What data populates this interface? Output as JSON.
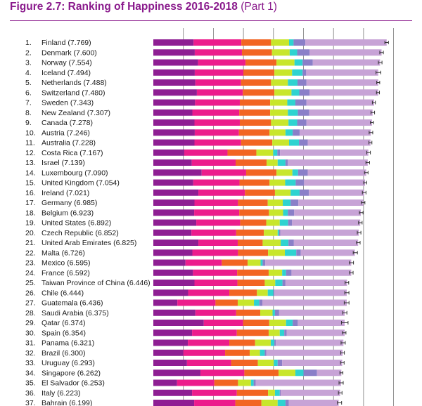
{
  "title": {
    "main": "Figure 2.7: Ranking of Happiness 2016-2018",
    "part": "(Part 1)"
  },
  "colors": {
    "title": "#8a1a8c",
    "segments": [
      "#8e1e93",
      "#ec1c8c",
      "#f26522",
      "#c8e62c",
      "#2ed3d0",
      "#8a7fc8",
      "#c7a3d6"
    ],
    "error_bar": "#333333",
    "gridline": "#7a7a7a"
  },
  "chart_data": {
    "type": "bar",
    "orientation": "horizontal",
    "stacked": true,
    "x_axis": "happiness score, from 0 (bar start); thin vertical gridlines at each 1 point",
    "grid": true,
    "segment_order_left_to_right": [
      "dark purple (segment 1)",
      "magenta (segment 2)",
      "orange (segment 3)",
      "lime green (segment 4)",
      "cyan (segment 5)",
      "lavender (segment 6)",
      "light purple (segment 7)"
    ],
    "rows": [
      {
        "rank": "1.",
        "label": "Finland (7.769)",
        "value": 7.769,
        "segments": [
          1.34,
          1.59,
          0.99,
          0.6,
          0.15,
          0.39,
          2.71
        ],
        "ci": 0.06
      },
      {
        "rank": "2.",
        "label": "Denmark (7.600)",
        "value": 7.6,
        "segments": [
          1.38,
          1.57,
          1.0,
          0.59,
          0.25,
          0.41,
          2.4
        ],
        "ci": 0.06
      },
      {
        "rank": "3.",
        "label": "Norway (7.554)",
        "value": 7.554,
        "segments": [
          1.49,
          1.58,
          1.03,
          0.6,
          0.27,
          0.34,
          2.24
        ],
        "ci": 0.06
      },
      {
        "rank": "4.",
        "label": "Iceland (7.494)",
        "value": 7.494,
        "segments": [
          1.38,
          1.62,
          1.03,
          0.59,
          0.35,
          0.12,
          2.4
        ],
        "ci": 0.08
      },
      {
        "rank": "5.",
        "label": "Netherlands (7.488)",
        "value": 7.488,
        "segments": [
          1.4,
          1.52,
          1.0,
          0.56,
          0.32,
          0.3,
          2.39
        ],
        "ci": 0.05
      },
      {
        "rank": "6.",
        "label": "Switzerland (7.480)",
        "value": 7.48,
        "segments": [
          1.45,
          1.53,
          1.05,
          0.57,
          0.26,
          0.34,
          2.29
        ],
        "ci": 0.05
      },
      {
        "rank": "7.",
        "label": "Sweden (7.343)",
        "value": 7.343,
        "segments": [
          1.39,
          1.49,
          1.01,
          0.57,
          0.27,
          0.37,
          2.25
        ],
        "ci": 0.05
      },
      {
        "rank": "8.",
        "label": "New Zealand (7.307)",
        "value": 7.307,
        "segments": [
          1.3,
          1.56,
          1.03,
          0.59,
          0.33,
          0.38,
          2.11
        ],
        "ci": 0.06
      },
      {
        "rank": "9.",
        "label": "Canada (7.278)",
        "value": 7.278,
        "segments": [
          1.37,
          1.51,
          1.04,
          0.58,
          0.29,
          0.31,
          2.18
        ],
        "ci": 0.05
      },
      {
        "rank": "10.",
        "label": "Austria (7.246)",
        "value": 7.246,
        "segments": [
          1.38,
          1.47,
          1.02,
          0.53,
          0.24,
          0.23,
          2.37
        ],
        "ci": 0.06
      },
      {
        "rank": "11.",
        "label": "Australia (7.228)",
        "value": 7.228,
        "segments": [
          1.37,
          1.55,
          1.04,
          0.56,
          0.33,
          0.29,
          2.09
        ],
        "ci": 0.05
      },
      {
        "rank": "12.",
        "label": "Costa Rica (7.167)",
        "value": 7.167,
        "segments": [
          1.03,
          1.44,
          0.96,
          0.56,
          0.14,
          0.09,
          2.94
        ],
        "ci": 0.06
      },
      {
        "rank": "13.",
        "label": "Israel (7.139)",
        "value": 7.139,
        "segments": [
          1.28,
          1.46,
          1.03,
          0.37,
          0.26,
          0.08,
          2.66
        ],
        "ci": 0.06
      },
      {
        "rank": "14.",
        "label": "Luxembourg (7.090)",
        "value": 7.09,
        "segments": [
          1.61,
          1.48,
          1.01,
          0.53,
          0.19,
          0.32,
          1.95
        ],
        "ci": 0.06
      },
      {
        "rank": "15.",
        "label": "United Kingdom (7.054)",
        "value": 7.054,
        "segments": [
          1.33,
          1.54,
          1.0,
          0.52,
          0.35,
          0.28,
          2.03
        ],
        "ci": 0.05
      },
      {
        "rank": "16.",
        "label": "Ireland (7.021)",
        "value": 7.021,
        "segments": [
          1.5,
          1.55,
          1.0,
          0.52,
          0.3,
          0.31,
          1.84
        ],
        "ci": 0.06
      },
      {
        "rank": "17.",
        "label": "Germany (6.985)",
        "value": 6.985,
        "segments": [
          1.37,
          1.45,
          0.99,
          0.5,
          0.26,
          0.26,
          2.16
        ],
        "ci": 0.06
      },
      {
        "rank": "18.",
        "label": "Belgium (6.923)",
        "value": 6.923,
        "segments": [
          1.36,
          1.5,
          0.99,
          0.47,
          0.16,
          0.21,
          2.22
        ],
        "ci": 0.06
      },
      {
        "rank": "19.",
        "label": "United States (6.892)",
        "value": 6.892,
        "segments": [
          1.43,
          1.46,
          0.87,
          0.45,
          0.28,
          0.13,
          2.27
        ],
        "ci": 0.06
      },
      {
        "rank": "20.",
        "label": "Czech Republic (6.852)",
        "value": 6.852,
        "segments": [
          1.27,
          1.49,
          0.92,
          0.46,
          0.05,
          0.04,
          2.61
        ],
        "ci": 0.06
      },
      {
        "rank": "21.",
        "label": "United Arab Emirates (6.825)",
        "value": 6.825,
        "segments": [
          1.5,
          1.31,
          0.83,
          0.6,
          0.26,
          0.18,
          2.14
        ],
        "ci": 0.06
      },
      {
        "rank": "22.",
        "label": "Malta (6.726)",
        "value": 6.726,
        "segments": [
          1.3,
          1.52,
          1.0,
          0.56,
          0.38,
          0.15,
          1.8
        ],
        "ci": 0.07
      },
      {
        "rank": "23.",
        "label": "Mexico (6.595)",
        "value": 6.595,
        "segments": [
          1.07,
          1.21,
          0.86,
          0.43,
          0.07,
          0.09,
          2.86
        ],
        "ci": 0.07
      },
      {
        "rank": "24.",
        "label": "France (6.592)",
        "value": 6.592,
        "segments": [
          1.32,
          1.47,
          1.05,
          0.45,
          0.13,
          0.18,
          1.99
        ],
        "ci": 0.06
      },
      {
        "rank": "25.",
        "label": "Taiwan Province of China (6.446)",
        "value": 6.446,
        "segments": [
          1.37,
          1.43,
          0.91,
          0.35,
          0.24,
          0.1,
          2.05
        ],
        "ci": 0.06
      },
      {
        "rank": "26.",
        "label": "Chile (6.444)",
        "value": 6.444,
        "segments": [
          1.16,
          1.37,
          0.92,
          0.36,
          0.19,
          0.03,
          2.41
        ],
        "ci": 0.07
      },
      {
        "rank": "27.",
        "label": "Guatemala (6.436)",
        "value": 6.436,
        "segments": [
          0.8,
          1.27,
          0.74,
          0.54,
          0.18,
          0.1,
          2.81
        ],
        "ci": 0.08
      },
      {
        "rank": "28.",
        "label": "Saudi Arabia (6.375)",
        "value": 6.375,
        "segments": [
          1.4,
          1.36,
          0.8,
          0.41,
          0.08,
          0.14,
          2.18
        ],
        "ci": 0.07
      },
      {
        "rank": "29.",
        "label": "Qatar (6.374)",
        "value": 6.374,
        "segments": [
          1.68,
          1.31,
          0.87,
          0.56,
          0.22,
          0.17,
          1.56
        ],
        "ci": 0.11
      },
      {
        "rank": "30.",
        "label": "Spain (6.354)",
        "value": 6.354,
        "segments": [
          1.29,
          1.49,
          1.06,
          0.37,
          0.15,
          0.08,
          1.93
        ],
        "ci": 0.06
      },
      {
        "rank": "31.",
        "label": "Panama (6.321)",
        "value": 6.321,
        "segments": [
          1.15,
          1.38,
          0.86,
          0.52,
          0.12,
          0.05,
          2.25
        ],
        "ci": 0.07
      },
      {
        "rank": "32.",
        "label": "Brazil (6.300)",
        "value": 6.3,
        "segments": [
          1.0,
          1.39,
          0.82,
          0.34,
          0.16,
          0.05,
          2.54
        ],
        "ci": 0.06
      },
      {
        "rank": "33.",
        "label": "Uruguay (6.293)",
        "value": 6.293,
        "segments": [
          1.12,
          1.47,
          0.89,
          0.53,
          0.13,
          0.15,
          2.0
        ],
        "ci": 0.06
      },
      {
        "rank": "34.",
        "label": "Singapore (6.262)",
        "value": 6.262,
        "segments": [
          1.57,
          1.46,
          1.14,
          0.56,
          0.27,
          0.45,
          0.81
        ],
        "ci": 0.05
      },
      {
        "rank": "35.",
        "label": "El Salvador (6.253)",
        "value": 6.253,
        "segments": [
          0.79,
          1.24,
          0.79,
          0.43,
          0.09,
          0.07,
          2.84
        ],
        "ci": 0.07
      },
      {
        "rank": "36.",
        "label": "Italy (6.223)",
        "value": 6.223,
        "segments": [
          1.29,
          1.49,
          1.04,
          0.23,
          0.16,
          0.03,
          1.98
        ],
        "ci": 0.06
      },
      {
        "rank": "37.",
        "label": "Bahrain (6.199)",
        "value": 6.199,
        "segments": [
          1.36,
          1.37,
          0.87,
          0.54,
          0.26,
          0.11,
          1.66
        ],
        "ci": 0.07
      }
    ]
  }
}
